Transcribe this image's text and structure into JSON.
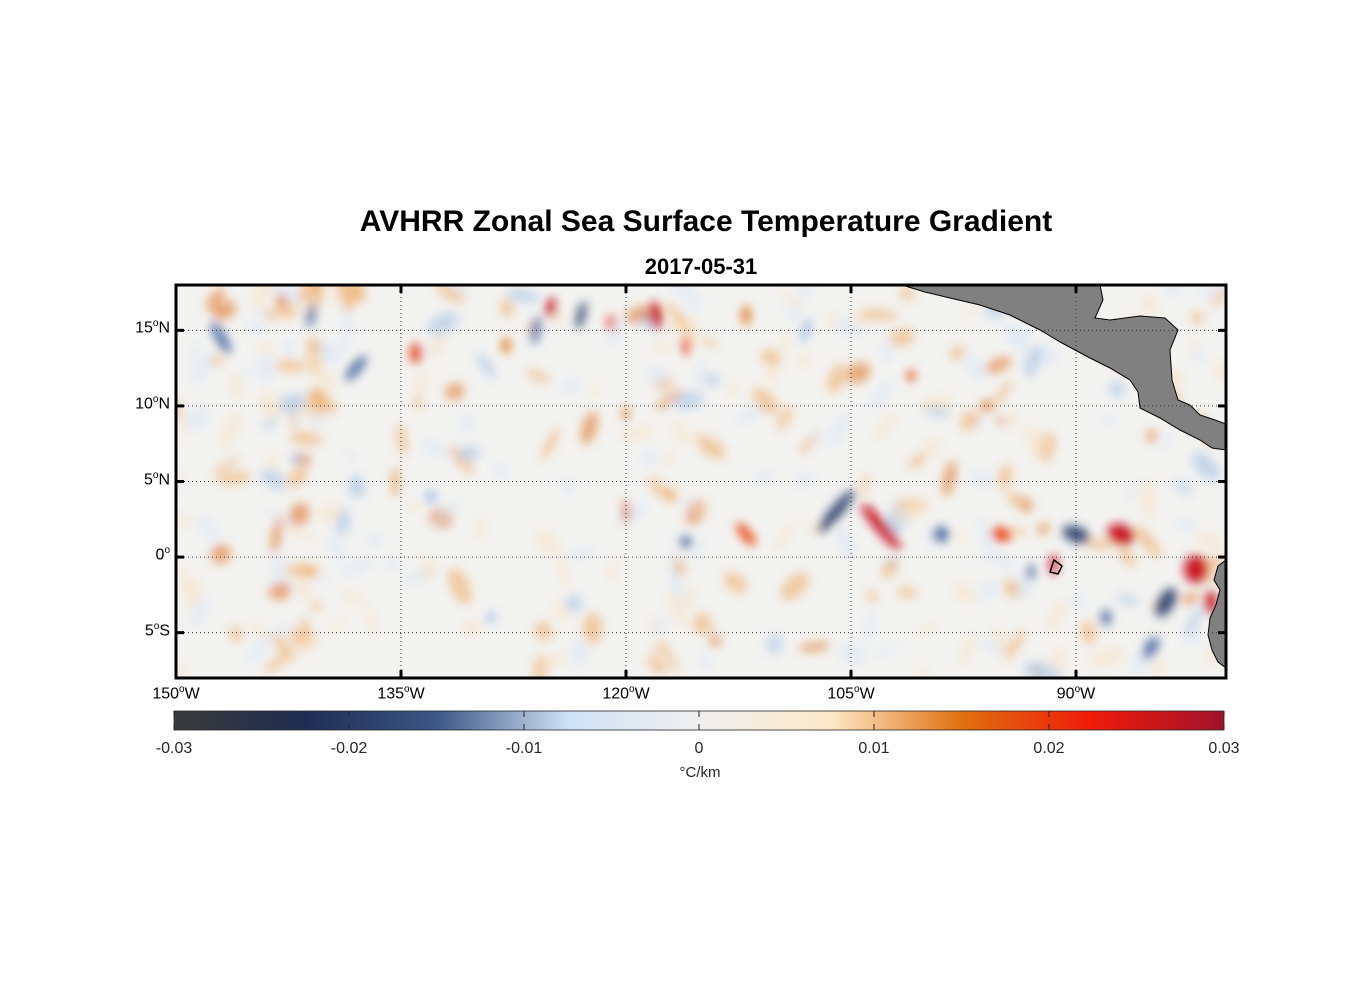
{
  "title": "AVHRR Zonal Sea Surface Temperature Gradient",
  "subtitle": "2017-05-31",
  "map": {
    "lon_range": [
      -150,
      -80
    ],
    "lat_range": [
      -8,
      18
    ],
    "lat_ticks": [
      {
        "value": 15,
        "num": "15",
        "sup": "o",
        "hem": "N"
      },
      {
        "value": 10,
        "num": "10",
        "sup": "o",
        "hem": "N"
      },
      {
        "value": 5,
        "num": "5",
        "sup": "o",
        "hem": "N"
      },
      {
        "value": 0,
        "num": "0",
        "sup": "o",
        "hem": ""
      },
      {
        "value": -5,
        "num": "5",
        "sup": "o",
        "hem": "S"
      }
    ],
    "lon_ticks": [
      {
        "value": -150,
        "num": "150",
        "sup": "o",
        "hem": "W"
      },
      {
        "value": -135,
        "num": "135",
        "sup": "o",
        "hem": "W"
      },
      {
        "value": -120,
        "num": "120",
        "sup": "o",
        "hem": "W"
      },
      {
        "value": -105,
        "num": "105",
        "sup": "o",
        "hem": "W"
      },
      {
        "value": -90,
        "num": "90",
        "sup": "o",
        "hem": "W"
      }
    ],
    "land_color": "#808080",
    "grid": "dotted"
  },
  "colorbar": {
    "range": [
      -0.03,
      0.03
    ],
    "ticks": [
      "-0.03",
      "-0.02",
      "-0.01",
      "0",
      "0.01",
      "0.02",
      "0.03"
    ],
    "units": "°C/km",
    "colors": [
      "#3a3a3a",
      "#1f2d52",
      "#3c5686",
      "#cfe1f6",
      "#f0f0f0",
      "#fde8c8",
      "#e0700e",
      "#f01a0a",
      "#a0122c"
    ]
  }
}
